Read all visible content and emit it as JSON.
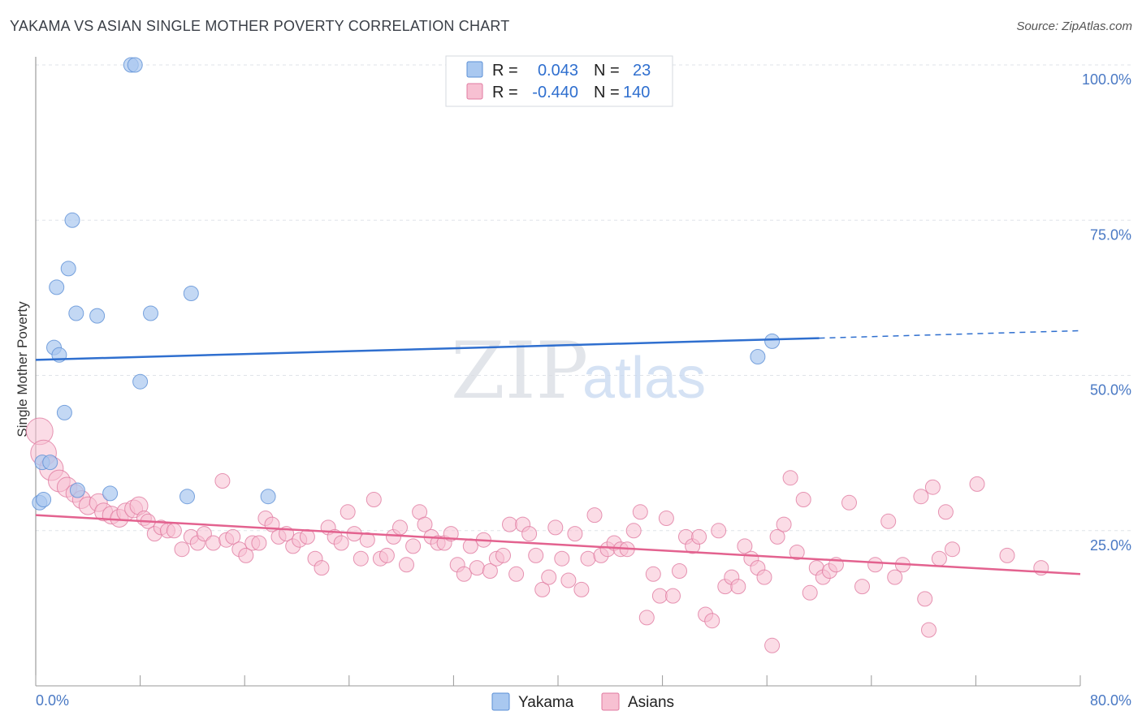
{
  "header": {
    "title": "YAKAMA VS ASIAN SINGLE MOTHER POVERTY CORRELATION CHART",
    "source": "Source: ZipAtlas.com"
  },
  "watermark": {
    "zip": "ZIP",
    "atlas": "atlas"
  },
  "stats_box": {
    "rows": [
      {
        "r_label": "R =",
        "r_value": "0.043",
        "n_label": "N =",
        "n_value": "23",
        "color": "#a9c8f0",
        "stroke": "#5b8fd6"
      },
      {
        "r_label": "R =",
        "r_value": "-0.440",
        "n_label": "N =",
        "n_value": "140",
        "color": "#f7c0d2",
        "stroke": "#e07aa0"
      }
    ]
  },
  "legend": {
    "items": [
      {
        "label": "Yakama",
        "color": "#a9c8f0",
        "stroke": "#5b8fd6"
      },
      {
        "label": "Asians",
        "color": "#f7c0d2",
        "stroke": "#e07aa0"
      }
    ]
  },
  "chart_data": {
    "type": "scatter",
    "title": "YAKAMA VS ASIAN SINGLE MOTHER POVERTY CORRELATION CHART",
    "xlabel": "",
    "ylabel": "Single Mother Poverty",
    "xlim": [
      0,
      80
    ],
    "ylim": [
      0,
      100
    ],
    "x_ticks": [
      "0.0%",
      "80.0%"
    ],
    "y_ticks": [
      "100.0%",
      "75.0%",
      "50.0%",
      "25.0%"
    ],
    "y_tick_values": [
      100,
      75,
      50,
      25
    ],
    "grid": true,
    "legend_position": "bottom-center",
    "series": [
      {
        "name": "Yakama",
        "color": "#a9c8f0",
        "stroke": "#5b8fd6",
        "trend": {
          "x0": 0,
          "y0": 52.5,
          "x1": 60,
          "y1": 56.0,
          "x_ext": 80,
          "y_ext": 57.2,
          "color": "#2f6fcf"
        },
        "points": [
          [
            7.3,
            100
          ],
          [
            7.6,
            100
          ],
          [
            2.8,
            75
          ],
          [
            2.5,
            67.2
          ],
          [
            1.6,
            64.2
          ],
          [
            11.9,
            63.2
          ],
          [
            3.1,
            60
          ],
          [
            4.7,
            59.6
          ],
          [
            8.8,
            60
          ],
          [
            1.4,
            54.5
          ],
          [
            1.8,
            53.3
          ],
          [
            8.0,
            49
          ],
          [
            2.2,
            44
          ],
          [
            0.5,
            36
          ],
          [
            1.1,
            36
          ],
          [
            3.2,
            31.5
          ],
          [
            5.7,
            31
          ],
          [
            11.6,
            30.5
          ],
          [
            17.8,
            30.5
          ],
          [
            0.3,
            29.5
          ],
          [
            0.6,
            30
          ],
          [
            56.4,
            55.5
          ],
          [
            55.3,
            53
          ]
        ]
      },
      {
        "name": "Asians",
        "color": "#f7c0d2",
        "stroke": "#e07aa0",
        "trend": {
          "x0": 0,
          "y0": 27.5,
          "x1": 80,
          "y1": 18.0,
          "color": "#e3628f"
        },
        "points": [
          [
            0.3,
            41
          ],
          [
            0.6,
            37.5
          ],
          [
            1.2,
            35
          ],
          [
            1.8,
            33
          ],
          [
            2.4,
            32
          ],
          [
            3.0,
            31
          ],
          [
            3.5,
            30
          ],
          [
            4.0,
            29
          ],
          [
            4.8,
            29.5
          ],
          [
            5.2,
            28
          ],
          [
            5.8,
            27.5
          ],
          [
            6.4,
            27
          ],
          [
            6.9,
            28
          ],
          [
            7.5,
            28.5
          ],
          [
            7.9,
            29
          ],
          [
            8.3,
            27
          ],
          [
            8.6,
            26.5
          ],
          [
            9.1,
            24.5
          ],
          [
            9.6,
            25.5
          ],
          [
            10.1,
            25
          ],
          [
            10.6,
            25
          ],
          [
            11.2,
            22
          ],
          [
            11.9,
            24
          ],
          [
            12.4,
            23
          ],
          [
            12.9,
            24.5
          ],
          [
            13.6,
            23
          ],
          [
            14.3,
            33
          ],
          [
            14.6,
            23.5
          ],
          [
            15.1,
            24
          ],
          [
            15.6,
            22
          ],
          [
            16.1,
            21
          ],
          [
            16.6,
            23
          ],
          [
            17.1,
            23
          ],
          [
            17.6,
            27
          ],
          [
            18.1,
            26
          ],
          [
            18.6,
            24
          ],
          [
            19.2,
            24.5
          ],
          [
            19.7,
            22.5
          ],
          [
            20.2,
            23.5
          ],
          [
            20.8,
            24
          ],
          [
            21.4,
            20.5
          ],
          [
            21.9,
            19
          ],
          [
            22.4,
            25.5
          ],
          [
            22.9,
            24
          ],
          [
            23.4,
            23
          ],
          [
            23.9,
            28
          ],
          [
            24.4,
            24.5
          ],
          [
            24.9,
            20.5
          ],
          [
            25.4,
            23.5
          ],
          [
            25.9,
            30
          ],
          [
            26.4,
            20.5
          ],
          [
            26.9,
            21
          ],
          [
            27.4,
            24
          ],
          [
            27.9,
            25.5
          ],
          [
            28.4,
            19.5
          ],
          [
            28.9,
            22.5
          ],
          [
            29.4,
            28
          ],
          [
            29.8,
            26
          ],
          [
            30.3,
            24
          ],
          [
            30.8,
            23
          ],
          [
            31.3,
            23
          ],
          [
            31.8,
            24.5
          ],
          [
            32.3,
            19.5
          ],
          [
            32.8,
            18
          ],
          [
            33.3,
            22.5
          ],
          [
            33.8,
            19
          ],
          [
            34.3,
            23.5
          ],
          [
            34.8,
            18.5
          ],
          [
            35.3,
            20.5
          ],
          [
            35.8,
            21
          ],
          [
            36.3,
            26
          ],
          [
            36.8,
            18
          ],
          [
            37.3,
            26
          ],
          [
            37.8,
            24.5
          ],
          [
            38.3,
            21
          ],
          [
            38.8,
            15.5
          ],
          [
            39.3,
            17.5
          ],
          [
            39.8,
            25.5
          ],
          [
            40.3,
            20.5
          ],
          [
            40.8,
            17
          ],
          [
            41.3,
            24.5
          ],
          [
            41.8,
            15.5
          ],
          [
            42.3,
            20.5
          ],
          [
            42.8,
            27.5
          ],
          [
            43.3,
            21
          ],
          [
            43.8,
            22
          ],
          [
            44.3,
            23
          ],
          [
            44.8,
            22
          ],
          [
            45.3,
            22
          ],
          [
            45.8,
            25
          ],
          [
            46.3,
            28
          ],
          [
            46.8,
            11
          ],
          [
            47.3,
            18
          ],
          [
            47.8,
            14.5
          ],
          [
            48.3,
            27
          ],
          [
            48.8,
            14.5
          ],
          [
            49.3,
            18.5
          ],
          [
            49.8,
            24
          ],
          [
            50.3,
            22.5
          ],
          [
            50.8,
            24
          ],
          [
            51.3,
            11.5
          ],
          [
            51.8,
            10.5
          ],
          [
            52.3,
            25
          ],
          [
            52.8,
            16
          ],
          [
            53.3,
            17.5
          ],
          [
            53.8,
            16
          ],
          [
            54.3,
            22.5
          ],
          [
            54.8,
            20.5
          ],
          [
            55.3,
            19
          ],
          [
            55.8,
            17.5
          ],
          [
            56.4,
            6.5
          ],
          [
            56.8,
            24
          ],
          [
            57.3,
            26
          ],
          [
            57.8,
            33.5
          ],
          [
            58.3,
            21.5
          ],
          [
            58.8,
            30
          ],
          [
            59.3,
            15
          ],
          [
            59.8,
            19
          ],
          [
            60.3,
            17.5
          ],
          [
            60.8,
            18.5
          ],
          [
            61.3,
            19.5
          ],
          [
            62.3,
            29.5
          ],
          [
            63.3,
            16
          ],
          [
            64.3,
            19.5
          ],
          [
            65.3,
            26.5
          ],
          [
            65.8,
            17.5
          ],
          [
            66.4,
            19.5
          ],
          [
            67.8,
            30.5
          ],
          [
            68.1,
            14
          ],
          [
            68.4,
            9
          ],
          [
            68.7,
            32
          ],
          [
            69.2,
            20.5
          ],
          [
            69.7,
            28
          ],
          [
            70.2,
            22
          ],
          [
            72.1,
            32.5
          ],
          [
            74.4,
            21
          ],
          [
            77.0,
            19
          ]
        ]
      }
    ]
  }
}
